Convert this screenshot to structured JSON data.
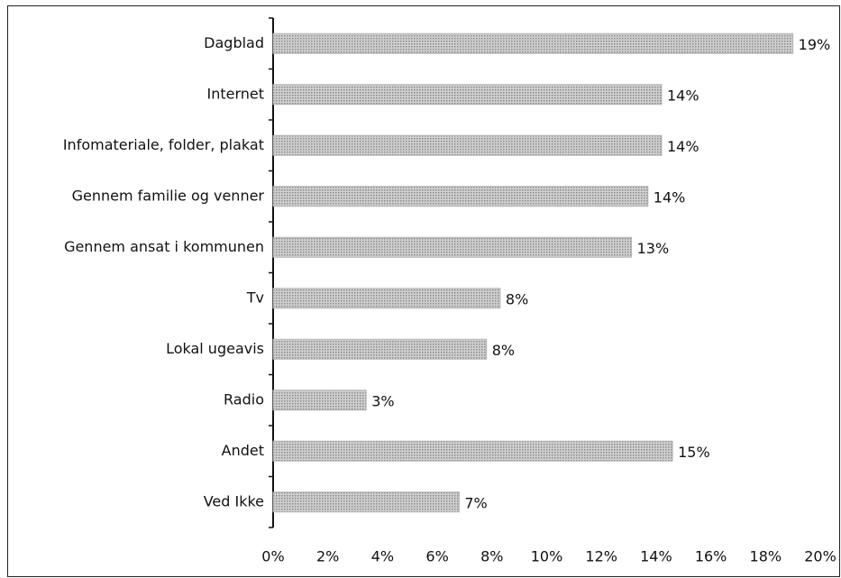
{
  "chart_data": {
    "type": "bar",
    "orientation": "horizontal",
    "categories": [
      "Dagblad",
      "Internet",
      "Infomateriale, folder, plakat",
      "Gennem familie og venner",
      "Gennem ansat i kommunen",
      "Tv",
      "Lokal ugeavis",
      "Radio",
      "Andet",
      "Ved Ikke"
    ],
    "values": [
      19.0,
      14.2,
      14.2,
      13.7,
      13.1,
      8.3,
      7.8,
      3.4,
      14.6,
      6.8
    ],
    "value_labels": [
      "19%",
      "14%",
      "14%",
      "14%",
      "13%",
      "8%",
      "8%",
      "3%",
      "15%",
      "7%"
    ],
    "color": "#b4b4b4",
    "xlim": [
      0,
      20
    ],
    "xticks": [
      {
        "value": 0,
        "label": "0%"
      },
      {
        "value": 2,
        "label": "2%"
      },
      {
        "value": 4,
        "label": "4%"
      },
      {
        "value": 6,
        "label": "6%"
      },
      {
        "value": 8,
        "label": "8%"
      },
      {
        "value": 10,
        "label": "10%"
      },
      {
        "value": 12,
        "label": "12%"
      },
      {
        "value": 14,
        "label": "14%"
      },
      {
        "value": 16,
        "label": "16%"
      },
      {
        "value": 18,
        "label": "18%"
      },
      {
        "value": 20,
        "label": "20%"
      }
    ],
    "grid": false
  }
}
